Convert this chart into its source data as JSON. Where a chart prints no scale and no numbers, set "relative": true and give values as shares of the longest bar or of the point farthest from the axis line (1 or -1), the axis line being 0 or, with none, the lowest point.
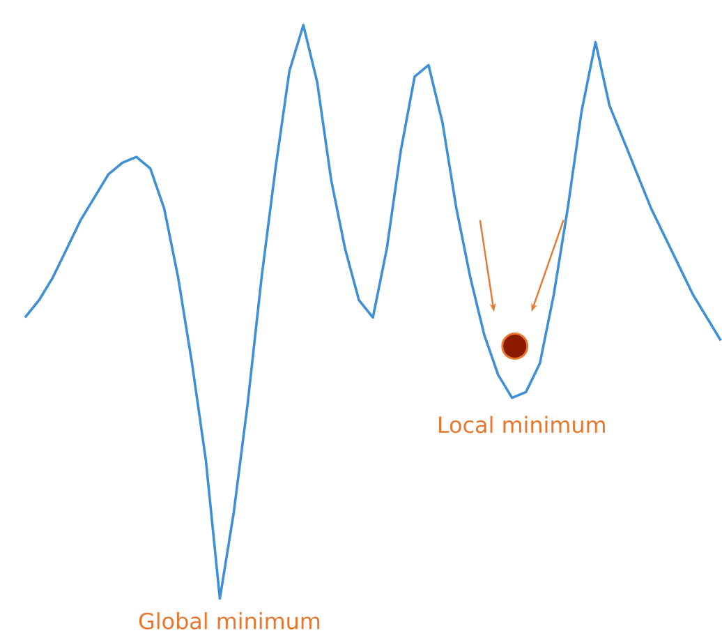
{
  "chart_data": {
    "type": "line",
    "relative": true,
    "color": "#3d8fd6",
    "categories": [
      null,
      null,
      null,
      null,
      null,
      null,
      null,
      null,
      null,
      null,
      null,
      null,
      null,
      null,
      null,
      null,
      null,
      null,
      null,
      null,
      null,
      null,
      null,
      null,
      null,
      null,
      null,
      null,
      null,
      null,
      null,
      null,
      null,
      null,
      null,
      null,
      null,
      null,
      null,
      null,
      null,
      null,
      null,
      null,
      null,
      null,
      null,
      null,
      null,
      null,
      null
    ],
    "values": [
      0.49,
      0.52,
      0.56,
      0.61,
      0.66,
      0.7,
      0.74,
      0.76,
      0.77,
      0.75,
      0.68,
      0.56,
      0.41,
      0.24,
      0,
      0.15,
      0.34,
      0.56,
      0.75,
      0.92,
      1.0,
      0.9,
      0.73,
      0.61,
      0.52,
      0.49,
      0.61,
      0.78,
      0.91,
      0.93,
      0.83,
      0.68,
      0.56,
      0.46,
      0.39,
      0.35,
      0.36,
      0.41,
      0.53,
      0.68,
      0.85,
      0.97,
      0.86,
      0.8,
      0.74,
      0.68,
      0.63,
      0.58,
      0.53,
      0.49,
      0.45
    ],
    "annotations": [
      "Global minimum",
      "Local minimum"
    ]
  }
}
